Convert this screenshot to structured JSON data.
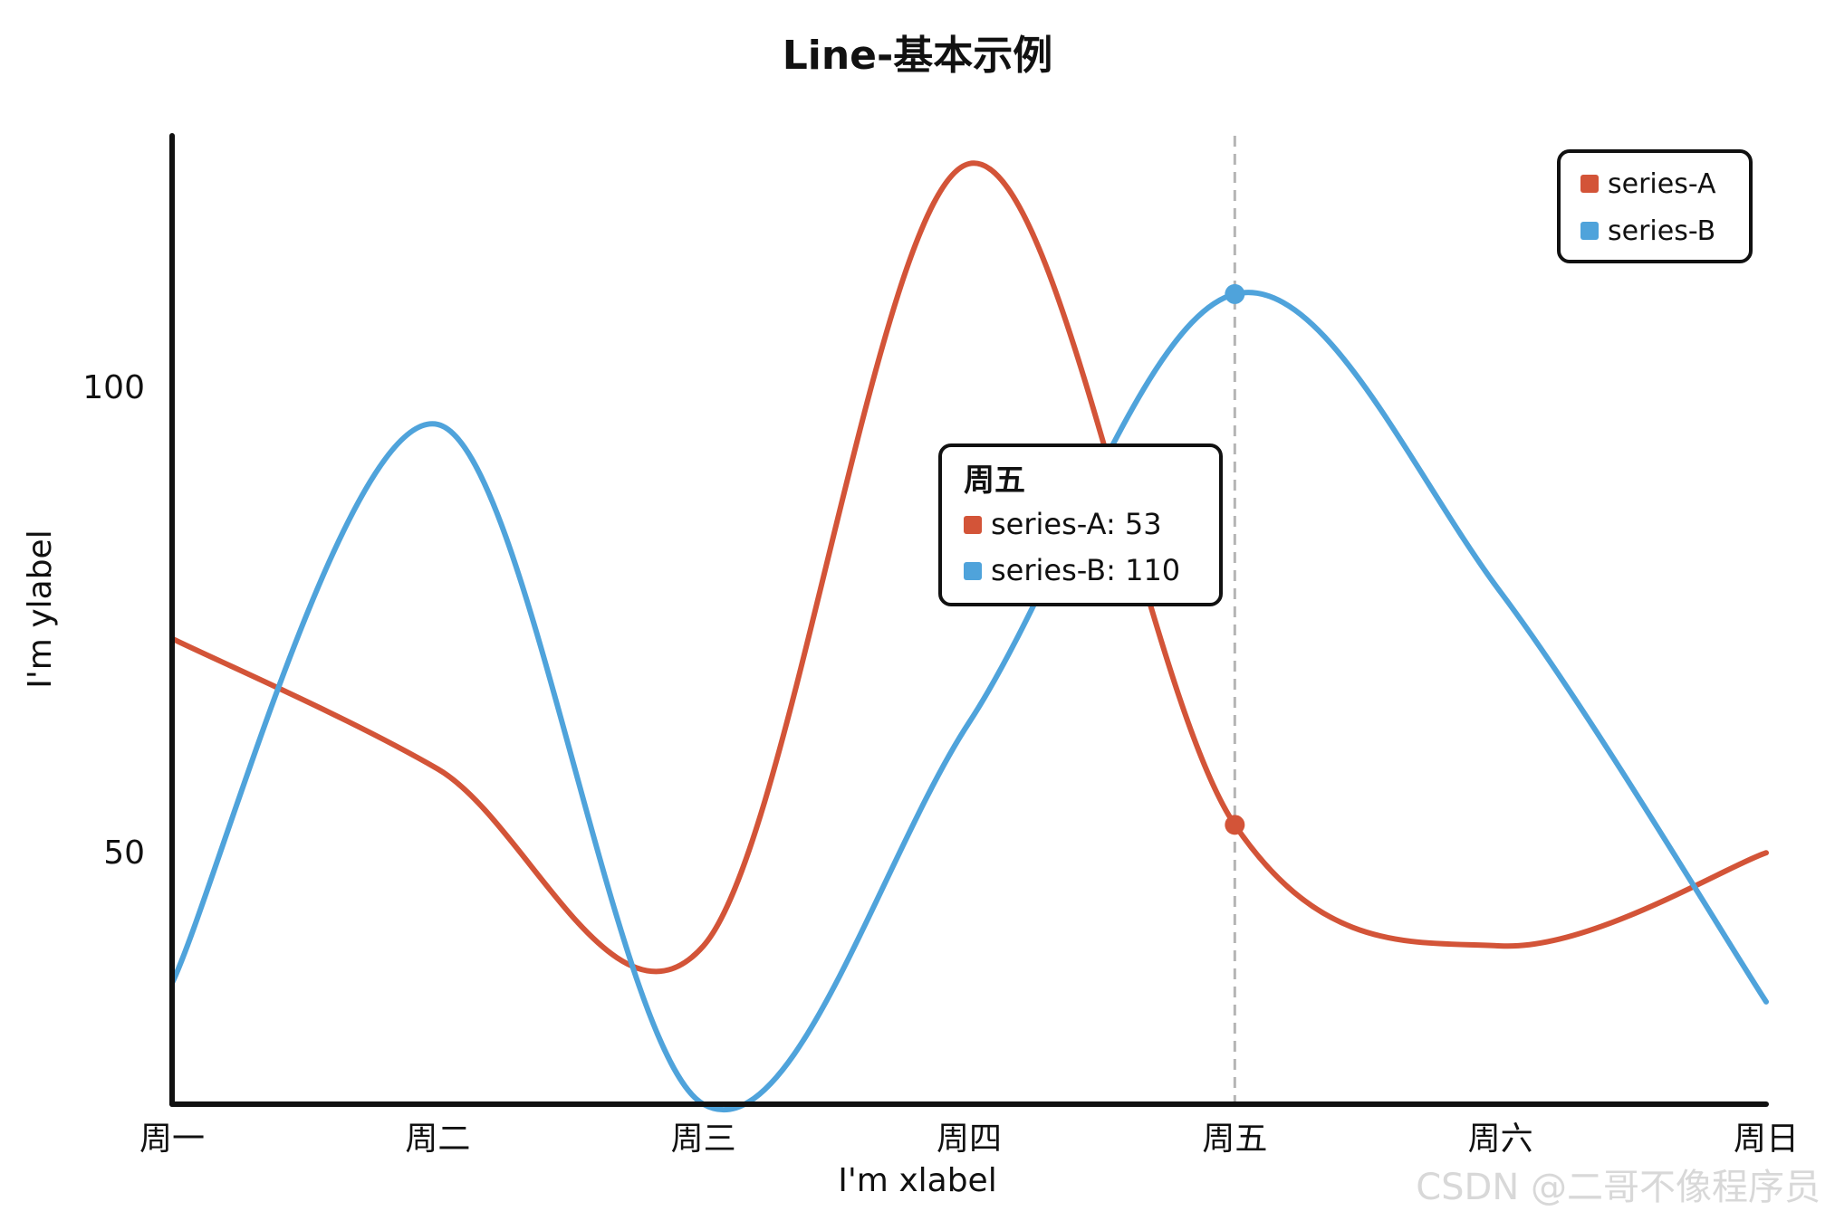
{
  "watermark": "CSDN @二哥不像程序员",
  "chart_data": {
    "type": "line",
    "title": "Line-基本示例",
    "xlabel": "I'm xlabel",
    "ylabel": "I'm ylabel",
    "categories": [
      "周一",
      "周二",
      "周三",
      "周四",
      "周五",
      "周六",
      "周日"
    ],
    "ylim": [
      23,
      127
    ],
    "yticks": [
      50,
      100
    ],
    "grid": false,
    "smooth": true,
    "legend_position": "top-right",
    "series": [
      {
        "name": "series-A",
        "color": "#d35438",
        "values": [
          73,
          59,
          40,
          124,
          53,
          40,
          50
        ]
      },
      {
        "name": "series-B",
        "color": "#4fa3db",
        "values": [
          36,
          96,
          23,
          64,
          110,
          78,
          34
        ]
      }
    ],
    "highlight_category": "周五",
    "tooltip": {
      "title": "周五",
      "rows": [
        {
          "label": "series-A: 53",
          "color": "#d35438"
        },
        {
          "label": "series-B: 110",
          "color": "#4fa3db"
        }
      ]
    }
  }
}
